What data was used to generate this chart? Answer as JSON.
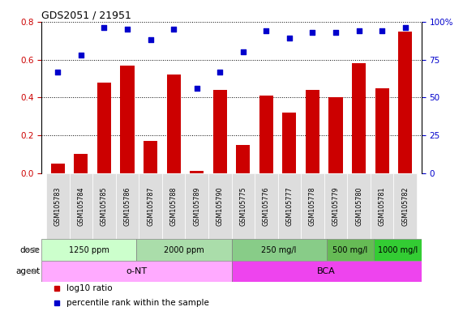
{
  "title": "GDS2051 / 21951",
  "samples": [
    "GSM105783",
    "GSM105784",
    "GSM105785",
    "GSM105786",
    "GSM105787",
    "GSM105788",
    "GSM105789",
    "GSM105790",
    "GSM105775",
    "GSM105776",
    "GSM105777",
    "GSM105778",
    "GSM105779",
    "GSM105780",
    "GSM105781",
    "GSM105782"
  ],
  "log10_ratio": [
    0.05,
    0.1,
    0.48,
    0.57,
    0.17,
    0.52,
    0.01,
    0.44,
    0.15,
    0.41,
    0.32,
    0.44,
    0.4,
    0.58,
    0.45,
    0.75
  ],
  "percentile_rank": [
    67,
    78,
    96,
    95,
    88,
    95,
    56,
    67,
    80,
    94,
    89,
    93,
    93,
    94,
    94,
    96
  ],
  "bar_color": "#cc0000",
  "dot_color": "#0000cc",
  "ylim_left": [
    0,
    0.8
  ],
  "ylim_right": [
    0,
    100
  ],
  "yticks_left": [
    0,
    0.2,
    0.4,
    0.6,
    0.8
  ],
  "yticks_right": [
    0,
    25,
    50,
    75,
    100
  ],
  "ytick_labels_right": [
    "0",
    "25",
    "50",
    "75",
    "100%"
  ],
  "dose_group_colors": [
    "#ccffcc",
    "#aaddaa",
    "#88cc88",
    "#66bb55",
    "#33cc33"
  ],
  "dose_groups": [
    {
      "label": "1250 ppm",
      "start": 0,
      "end": 4
    },
    {
      "label": "2000 ppm",
      "start": 4,
      "end": 8
    },
    {
      "label": "250 mg/l",
      "start": 8,
      "end": 12
    },
    {
      "label": "500 mg/l",
      "start": 12,
      "end": 14
    },
    {
      "label": "1000 mg/l",
      "start": 14,
      "end": 16
    }
  ],
  "agent_group_colors": [
    "#ffaaff",
    "#ee44ee"
  ],
  "agent_groups": [
    {
      "label": "o-NT",
      "start": 0,
      "end": 8
    },
    {
      "label": "BCA",
      "start": 8,
      "end": 16
    }
  ],
  "dose_label": "dose",
  "agent_label": "agent",
  "legend_items": [
    {
      "color": "#cc0000",
      "label": "log10 ratio"
    },
    {
      "color": "#0000cc",
      "label": "percentile rank within the sample"
    }
  ],
  "sample_box_color": "#dddddd",
  "background_color": "#ffffff"
}
